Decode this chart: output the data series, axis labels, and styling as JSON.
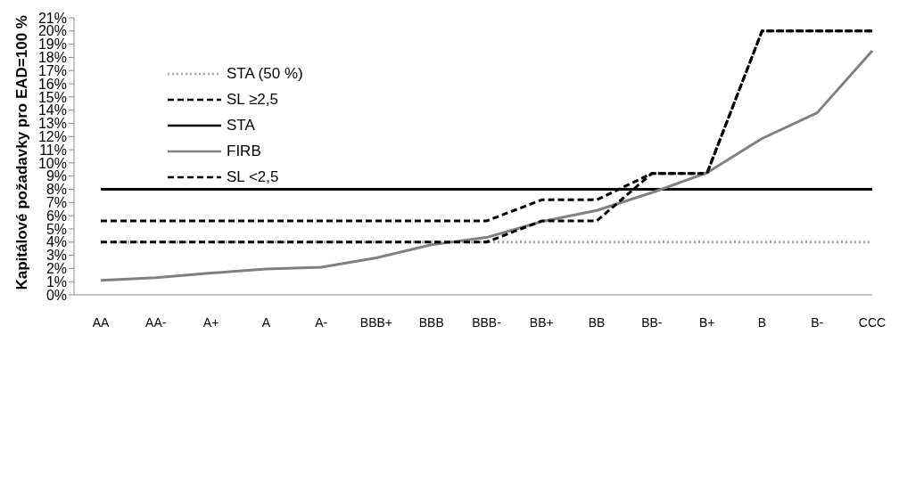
{
  "chart_data": {
    "type": "line",
    "ylabel": "Kapitálové požadavky pro EAD=100 %",
    "categories": [
      "AA",
      "AA-",
      "A+",
      "A",
      "A-",
      "BBB+",
      "BBB",
      "BBB-",
      "BB+",
      "BB",
      "BB-",
      "B+",
      "B",
      "B-",
      "CCC"
    ],
    "series": [
      {
        "name": "STA (50 %)",
        "color": "#a6a6a6",
        "line_style": "dotted",
        "values": [
          4,
          4,
          4,
          4,
          4,
          4,
          4,
          4,
          4,
          4,
          4,
          4,
          4,
          4,
          4
        ]
      },
      {
        "name": "SL ≥2,5",
        "color": "#000000",
        "line_style": "dashed",
        "values": [
          5.6,
          5.6,
          5.6,
          5.6,
          5.6,
          5.6,
          5.6,
          5.6,
          7.2,
          7.2,
          9.2,
          9.2,
          20,
          20,
          20
        ]
      },
      {
        "name": "STA",
        "color": "#000000",
        "line_style": "solid",
        "values": [
          8,
          8,
          8,
          8,
          8,
          8,
          8,
          8,
          8,
          8,
          8,
          8,
          8,
          8,
          8
        ]
      },
      {
        "name": "FIRB",
        "color": "#808080",
        "line_style": "solid",
        "values": [
          1.1,
          1.3,
          1.65,
          1.95,
          2.1,
          2.8,
          3.8,
          4.35,
          5.55,
          6.4,
          7.75,
          9.25,
          11.85,
          13.8,
          18.5
        ]
      },
      {
        "name": "SL <2,5",
        "color": "#000000",
        "line_style": "dashed",
        "values": [
          4,
          4,
          4,
          4,
          4,
          4,
          4,
          4,
          5.6,
          5.6,
          9.2,
          9.2,
          20,
          20,
          20
        ]
      }
    ],
    "ylim": [
      0,
      21
    ],
    "yticks": [
      {
        "value": 0,
        "label": "0%"
      },
      {
        "value": 1,
        "label": "1%"
      },
      {
        "value": 2,
        "label": "2%"
      },
      {
        "value": 3,
        "label": "3%"
      },
      {
        "value": 4,
        "label": "4%"
      },
      {
        "value": 5,
        "label": "5%"
      },
      {
        "value": 6,
        "label": "6%"
      },
      {
        "value": 7,
        "label": "7%"
      },
      {
        "value": 8,
        "label": "8%"
      },
      {
        "value": 9,
        "label": "9%"
      },
      {
        "value": 10,
        "label": "10%"
      },
      {
        "value": 11,
        "label": "11%"
      },
      {
        "value": 12,
        "label": "12%"
      },
      {
        "value": 13,
        "label": "13%"
      },
      {
        "value": 14,
        "label": "14%"
      },
      {
        "value": 15,
        "label": "15%"
      },
      {
        "value": 16,
        "label": "16%"
      },
      {
        "value": 17,
        "label": "17%"
      },
      {
        "value": 18,
        "label": "18%"
      },
      {
        "value": 19,
        "label": "19%"
      },
      {
        "value": 20,
        "label": "20%"
      },
      {
        "value": 21,
        "label": "21%"
      }
    ],
    "grid": false,
    "legend": "top left",
    "marker": "none"
  }
}
